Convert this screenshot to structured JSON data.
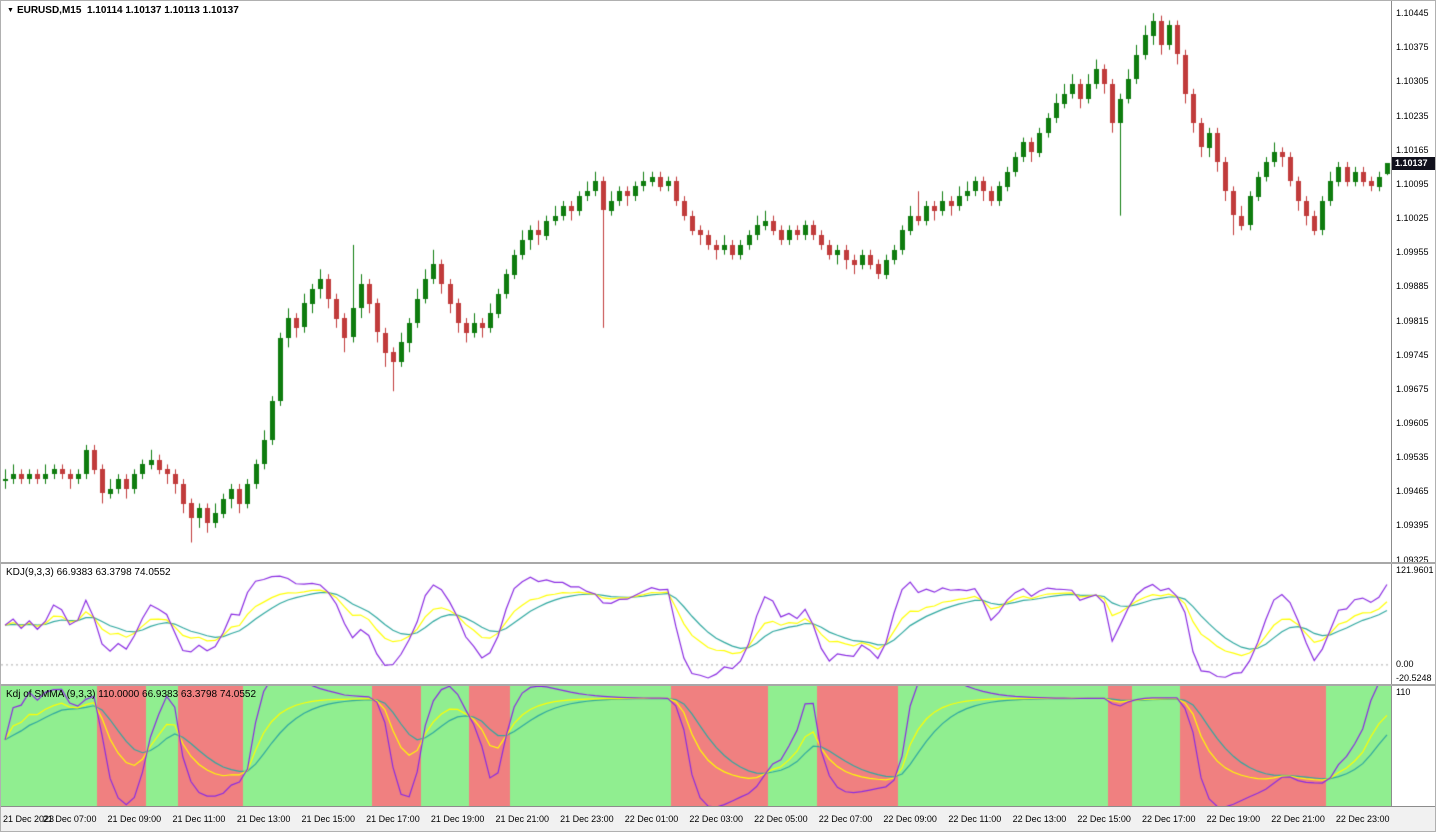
{
  "chart_header": {
    "title_symbol": "EURUSD,M15",
    "title_ohlc": "1.10114  1.10137 1.10113 1.10137"
  },
  "icons": {
    "chart_marker": "▼"
  },
  "colors": {
    "up": "#0E7C0E",
    "down": "#C13B3B",
    "k_line": "#FFFF00",
    "d_line": "#2FA8A0",
    "j_line": "#8A2BE2",
    "stripe_up": "#90EE90",
    "stripe_down": "#F08080",
    "tag_bg": "#10101C",
    "tag_text": "#FFFFFF",
    "panel_bg": "#FFFFFF",
    "border": "#8C8C8C",
    "zero_line": "#AAAAAA"
  },
  "main_axis": {
    "labels": [
      "1.10445",
      "1.10375",
      "1.10305",
      "1.10235",
      "1.10165",
      "1.10095",
      "1.10025",
      "1.09955",
      "1.09885",
      "1.09815",
      "1.09745",
      "1.09675",
      "1.09605",
      "1.09535",
      "1.09465",
      "1.09395",
      "1.09325"
    ],
    "price_tag": "1.10137"
  },
  "time_axis": {
    "labels": [
      "21 Dec 2023",
      "21 Dec 07:00",
      "21 Dec 09:00",
      "21 Dec 11:00",
      "21 Dec 13:00",
      "21 Dec 15:00",
      "21 Dec 17:00",
      "21 Dec 19:00",
      "21 Dec 21:00",
      "21 Dec 23:00",
      "22 Dec 01:00",
      "22 Dec 03:00",
      "22 Dec 05:00",
      "22 Dec 07:00",
      "22 Dec 09:00",
      "22 Dec 11:00",
      "22 Dec 13:00",
      "22 Dec 15:00",
      "22 Dec 17:00",
      "22 Dec 19:00",
      "22 Dec 21:00",
      "22 Dec 23:00"
    ]
  },
  "kdj_panel": {
    "title": "KDJ(9,3,3) 66.9383 63.3798 74.0552",
    "scale_labels": [
      {
        "text": "121.9601",
        "value": 121.9601
      },
      {
        "text": "0.00",
        "value": 0
      },
      {
        "text": "-20.5248",
        "value": -20.5248
      }
    ],
    "ylim": [
      -25,
      128
    ]
  },
  "smma_panel": {
    "title": "Kdj of SMMA (9,3,3) 110.0000 66.9383 63.3798 74.0552",
    "scale_labels": [
      {
        "text": "110",
        "value": 110
      }
    ],
    "ylim": [
      -30,
      115
    ]
  },
  "chart_data": {
    "type": "candlestick",
    "title": "EURUSD,M15",
    "symbol": "EURUSD",
    "timeframe": "M15",
    "current_ohlc": {
      "open": 1.10114,
      "high": 1.10137,
      "low": 1.10113,
      "close": 1.10137
    },
    "ylim": [
      1.0932,
      1.1047
    ],
    "x_first_label": "21 Dec 2023",
    "x_last_label": "22 Dec 23:00",
    "bar_interval_minutes": 15,
    "candles": [
      [
        1.09485,
        1.0951,
        1.0947,
        1.0949
      ],
      [
        1.0949,
        1.0952,
        1.0948,
        1.095
      ],
      [
        1.095,
        1.0951,
        1.0948,
        1.0949
      ],
      [
        1.0949,
        1.0951,
        1.0948,
        1.095
      ],
      [
        1.095,
        1.0951,
        1.0948,
        1.0949
      ],
      [
        1.0949,
        1.0952,
        1.0948,
        1.095
      ],
      [
        1.095,
        1.0952,
        1.0949,
        1.0951
      ],
      [
        1.0951,
        1.0952,
        1.0949,
        1.095
      ],
      [
        1.095,
        1.0951,
        1.0947,
        1.0949
      ],
      [
        1.0949,
        1.0951,
        1.0948,
        1.095
      ],
      [
        1.095,
        1.0956,
        1.0949,
        1.0955
      ],
      [
        1.0955,
        1.0956,
        1.095,
        1.0951
      ],
      [
        1.0951,
        1.0952,
        1.0944,
        1.0946
      ],
      [
        1.0946,
        1.0949,
        1.0945,
        1.0947
      ],
      [
        1.0947,
        1.095,
        1.0946,
        1.0949
      ],
      [
        1.0949,
        1.095,
        1.0945,
        1.0947
      ],
      [
        1.0947,
        1.0951,
        1.0946,
        1.095
      ],
      [
        1.095,
        1.0953,
        1.0949,
        1.0952
      ],
      [
        1.0952,
        1.0955,
        1.0951,
        1.0953
      ],
      [
        1.0953,
        1.0954,
        1.095,
        1.0951
      ],
      [
        1.0951,
        1.0952,
        1.0948,
        1.095
      ],
      [
        1.095,
        1.0951,
        1.0946,
        1.0948
      ],
      [
        1.0948,
        1.0949,
        1.0942,
        1.0944
      ],
      [
        1.0944,
        1.0945,
        1.0936,
        1.0941
      ],
      [
        1.0941,
        1.0944,
        1.0939,
        1.0943
      ],
      [
        1.0943,
        1.0944,
        1.0938,
        1.094
      ],
      [
        1.094,
        1.0944,
        1.0939,
        1.0942
      ],
      [
        1.0942,
        1.0946,
        1.0941,
        1.0945
      ],
      [
        1.0945,
        1.0948,
        1.0943,
        1.0947
      ],
      [
        1.0947,
        1.0948,
        1.0942,
        1.0944
      ],
      [
        1.0944,
        1.0949,
        1.0943,
        1.0948
      ],
      [
        1.0948,
        1.0953,
        1.0947,
        1.0952
      ],
      [
        1.0952,
        1.0959,
        1.0951,
        1.0957
      ],
      [
        1.0957,
        1.0966,
        1.0956,
        1.0965
      ],
      [
        1.0965,
        1.0979,
        1.0964,
        1.0978
      ],
      [
        1.0978,
        1.0984,
        1.0976,
        1.0982
      ],
      [
        1.0982,
        1.0983,
        1.0978,
        1.098
      ],
      [
        1.098,
        1.0987,
        1.0979,
        1.0985
      ],
      [
        1.0985,
        1.0989,
        1.0983,
        1.0988
      ],
      [
        1.0988,
        1.0992,
        1.0986,
        1.099
      ],
      [
        1.099,
        1.0991,
        1.0984,
        1.0986
      ],
      [
        1.0986,
        1.0987,
        1.098,
        1.0982
      ],
      [
        1.0982,
        1.0983,
        1.0975,
        1.0978
      ],
      [
        1.0978,
        1.0997,
        1.0977,
        1.0984
      ],
      [
        1.0984,
        1.0991,
        1.0982,
        1.0989
      ],
      [
        1.0989,
        1.099,
        1.0983,
        1.0985
      ],
      [
        1.0985,
        1.0986,
        1.0977,
        1.0979
      ],
      [
        1.0979,
        1.098,
        1.0972,
        1.0975
      ],
      [
        1.0975,
        1.0976,
        1.0967,
        1.0973
      ],
      [
        1.0973,
        1.0979,
        1.0972,
        1.0977
      ],
      [
        1.0977,
        1.0982,
        1.0975,
        1.0981
      ],
      [
        1.0981,
        1.0988,
        1.098,
        1.0986
      ],
      [
        1.0986,
        1.0992,
        1.0985,
        1.099
      ],
      [
        1.099,
        1.0996,
        1.0989,
        1.0993
      ],
      [
        1.0993,
        1.0994,
        1.0987,
        1.0989
      ],
      [
        1.0989,
        1.099,
        1.0983,
        1.0985
      ],
      [
        1.0985,
        1.0986,
        1.0979,
        1.0981
      ],
      [
        1.0981,
        1.0982,
        1.0977,
        1.0979
      ],
      [
        1.0979,
        1.0983,
        1.0978,
        1.0981
      ],
      [
        1.0981,
        1.0982,
        1.0978,
        1.098
      ],
      [
        1.098,
        1.0985,
        1.0979,
        1.0983
      ],
      [
        1.0983,
        1.0988,
        1.0982,
        1.0987
      ],
      [
        1.0987,
        1.0992,
        1.0986,
        1.0991
      ],
      [
        1.0991,
        1.0996,
        1.099,
        1.0995
      ],
      [
        1.0995,
        1.1,
        1.0994,
        1.0998
      ],
      [
        1.0998,
        1.1001,
        1.0996,
        1.1
      ],
      [
        1.1,
        1.1002,
        1.0997,
        1.0999
      ],
      [
        1.0999,
        1.1003,
        1.0998,
        1.1002
      ],
      [
        1.1002,
        1.1005,
        1.1001,
        1.1003
      ],
      [
        1.1003,
        1.1006,
        1.1002,
        1.1005
      ],
      [
        1.1005,
        1.1006,
        1.1002,
        1.1004
      ],
      [
        1.1004,
        1.1008,
        1.1003,
        1.1007
      ],
      [
        1.1007,
        1.101,
        1.1006,
        1.1008
      ],
      [
        1.1008,
        1.1012,
        1.1007,
        1.101
      ],
      [
        1.101,
        1.1011,
        1.098,
        1.1004
      ],
      [
        1.1004,
        1.1008,
        1.1003,
        1.1006
      ],
      [
        1.1006,
        1.1009,
        1.1005,
        1.1008
      ],
      [
        1.1008,
        1.1009,
        1.1005,
        1.1007
      ],
      [
        1.1007,
        1.101,
        1.1006,
        1.1009
      ],
      [
        1.1009,
        1.1012,
        1.1008,
        1.101
      ],
      [
        1.101,
        1.1012,
        1.1009,
        1.1011
      ],
      [
        1.1011,
        1.1012,
        1.1008,
        1.1009
      ],
      [
        1.1009,
        1.1011,
        1.1008,
        1.101
      ],
      [
        1.101,
        1.1011,
        1.1005,
        1.1006
      ],
      [
        1.1006,
        1.1007,
        1.1002,
        1.1003
      ],
      [
        1.1003,
        1.1004,
        1.0999,
        1.1
      ],
      [
        1.1,
        1.1001,
        1.0997,
        1.0999
      ],
      [
        1.0999,
        1.1,
        1.0996,
        1.0997
      ],
      [
        1.0997,
        1.0998,
        1.0994,
        1.0996
      ],
      [
        1.0996,
        1.0999,
        1.0995,
        1.0997
      ],
      [
        1.0997,
        1.0998,
        1.0994,
        1.0995
      ],
      [
        1.0995,
        1.0998,
        1.0994,
        1.0997
      ],
      [
        1.0997,
        1.1,
        1.0996,
        1.0999
      ],
      [
        1.0999,
        1.1003,
        1.0998,
        1.1001
      ],
      [
        1.1001,
        1.1004,
        1.1,
        1.1002
      ],
      [
        1.1002,
        1.1003,
        1.0999,
        1.1
      ],
      [
        1.1,
        1.1001,
        1.0997,
        1.0998
      ],
      [
        1.0998,
        1.1001,
        1.0997,
        1.1
      ],
      [
        1.1,
        1.1001,
        1.0998,
        1.0999
      ],
      [
        1.0999,
        1.1002,
        1.0998,
        1.1001
      ],
      [
        1.1001,
        1.1002,
        1.0998,
        1.0999
      ],
      [
        1.0999,
        1.1,
        1.0996,
        1.0997
      ],
      [
        1.0997,
        1.0998,
        1.0994,
        1.0995
      ],
      [
        1.0995,
        1.0997,
        1.0993,
        1.0996
      ],
      [
        1.0996,
        1.0997,
        1.0992,
        1.0994
      ],
      [
        1.0994,
        1.0995,
        1.0991,
        1.0993
      ],
      [
        1.0993,
        1.0996,
        1.0992,
        1.0995
      ],
      [
        1.0995,
        1.0996,
        1.0992,
        1.0993
      ],
      [
        1.0993,
        1.0994,
        1.099,
        1.0991
      ],
      [
        1.0991,
        1.0995,
        1.099,
        1.0994
      ],
      [
        1.0994,
        1.0997,
        1.0993,
        1.0996
      ],
      [
        1.0996,
        1.1001,
        1.0995,
        1.1
      ],
      [
        1.1,
        1.1005,
        1.0999,
        1.1003
      ],
      [
        1.1003,
        1.1008,
        1.1001,
        1.1002
      ],
      [
        1.1002,
        1.1006,
        1.1001,
        1.1005
      ],
      [
        1.1005,
        1.1006,
        1.1002,
        1.1004
      ],
      [
        1.1004,
        1.1008,
        1.1003,
        1.1006
      ],
      [
        1.1006,
        1.1007,
        1.1003,
        1.1005
      ],
      [
        1.1005,
        1.1009,
        1.1004,
        1.1007
      ],
      [
        1.1007,
        1.101,
        1.1006,
        1.1008
      ],
      [
        1.1008,
        1.1011,
        1.1007,
        1.101
      ],
      [
        1.101,
        1.1011,
        1.1006,
        1.1008
      ],
      [
        1.1008,
        1.1009,
        1.1005,
        1.1006
      ],
      [
        1.1006,
        1.101,
        1.1005,
        1.1009
      ],
      [
        1.1009,
        1.1013,
        1.1008,
        1.1012
      ],
      [
        1.1012,
        1.1016,
        1.1011,
        1.1015
      ],
      [
        1.1015,
        1.1019,
        1.1014,
        1.1018
      ],
      [
        1.1018,
        1.1019,
        1.1014,
        1.1016
      ],
      [
        1.1016,
        1.1021,
        1.1015,
        1.102
      ],
      [
        1.102,
        1.1024,
        1.1019,
        1.1023
      ],
      [
        1.1023,
        1.1028,
        1.1022,
        1.1026
      ],
      [
        1.1026,
        1.103,
        1.1025,
        1.1028
      ],
      [
        1.1028,
        1.1032,
        1.1027,
        1.103
      ],
      [
        1.103,
        1.1031,
        1.1025,
        1.1027
      ],
      [
        1.1027,
        1.1032,
        1.1026,
        1.103
      ],
      [
        1.103,
        1.1035,
        1.1029,
        1.1033
      ],
      [
        1.1033,
        1.1034,
        1.1028,
        1.103
      ],
      [
        1.103,
        1.1031,
        1.102,
        1.1022
      ],
      [
        1.1022,
        1.1028,
        1.1003,
        1.1027
      ],
      [
        1.1027,
        1.1033,
        1.1026,
        1.1031
      ],
      [
        1.1031,
        1.1038,
        1.103,
        1.1036
      ],
      [
        1.1036,
        1.1042,
        1.1035,
        1.104
      ],
      [
        1.104,
        1.10445,
        1.1038,
        1.1043
      ],
      [
        1.1043,
        1.1044,
        1.1036,
        1.1038
      ],
      [
        1.1038,
        1.1043,
        1.1037,
        1.1042
      ],
      [
        1.1042,
        1.1043,
        1.1034,
        1.1036
      ],
      [
        1.1036,
        1.1037,
        1.1026,
        1.1028
      ],
      [
        1.1028,
        1.1029,
        1.102,
        1.1022
      ],
      [
        1.1022,
        1.1023,
        1.1015,
        1.1017
      ],
      [
        1.1017,
        1.1021,
        1.1015,
        1.102
      ],
      [
        1.102,
        1.1021,
        1.1012,
        1.1014
      ],
      [
        1.1014,
        1.1015,
        1.1006,
        1.1008
      ],
      [
        1.1008,
        1.1009,
        1.0999,
        1.1003
      ],
      [
        1.1003,
        1.1005,
        1.1,
        1.1001
      ],
      [
        1.1001,
        1.1008,
        1.1,
        1.1007
      ],
      [
        1.1007,
        1.1012,
        1.1006,
        1.1011
      ],
      [
        1.1011,
        1.1015,
        1.101,
        1.1014
      ],
      [
        1.1014,
        1.1018,
        1.1013,
        1.1016
      ],
      [
        1.1016,
        1.1017,
        1.1013,
        1.1015
      ],
      [
        1.1015,
        1.1016,
        1.1009,
        1.101
      ],
      [
        1.101,
        1.1011,
        1.1004,
        1.1006
      ],
      [
        1.1006,
        1.1007,
        1.1001,
        1.1003
      ],
      [
        1.1003,
        1.1004,
        1.0999,
        1.1
      ],
      [
        1.1,
        1.1007,
        1.0999,
        1.1006
      ],
      [
        1.1006,
        1.1012,
        1.1005,
        1.101
      ],
      [
        1.101,
        1.1014,
        1.1009,
        1.1013
      ],
      [
        1.1013,
        1.1014,
        1.1009,
        1.101
      ],
      [
        1.101,
        1.1013,
        1.1009,
        1.1012
      ],
      [
        1.1012,
        1.1013,
        1.1009,
        1.101
      ],
      [
        1.101,
        1.1011,
        1.1008,
        1.1009
      ],
      [
        1.1009,
        1.1012,
        1.1008,
        1.1011
      ],
      [
        1.10114,
        1.10137,
        1.10113,
        1.10137
      ]
    ],
    "indicators": [
      {
        "name": "KDJ",
        "params": [
          9,
          3,
          3
        ],
        "lines": [
          "K",
          "D",
          "J"
        ],
        "current_values": [
          66.9383,
          63.3798,
          74.0552
        ],
        "shown_range": [
          -20.5248,
          121.9601
        ]
      },
      {
        "name": "Kdj of SMMA",
        "params": [
          9,
          3,
          3
        ],
        "level": 110.0,
        "current_values": [
          66.9383,
          63.3798,
          74.0552
        ]
      }
    ]
  }
}
